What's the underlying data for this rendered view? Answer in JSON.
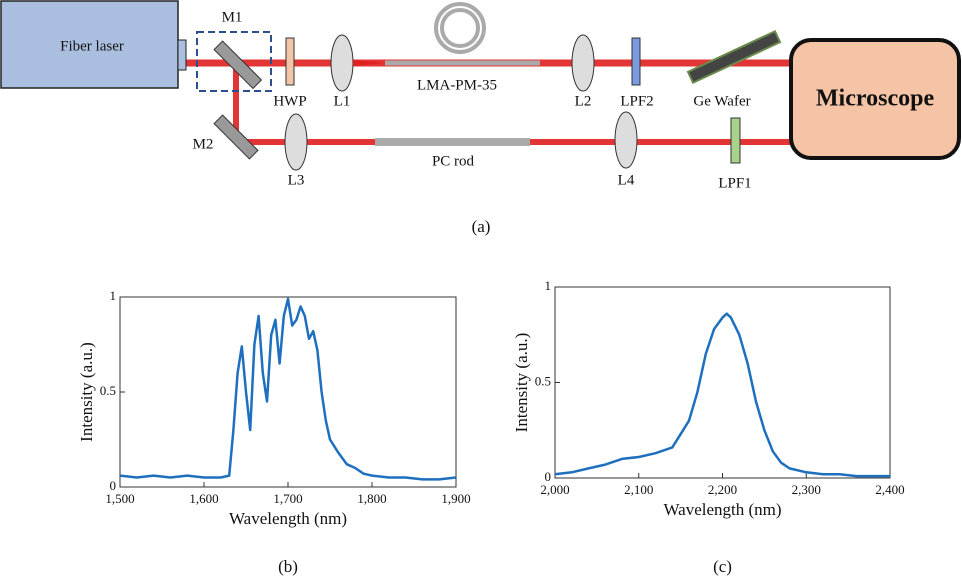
{
  "diagram": {
    "labels": {
      "laser": "Fiber laser",
      "m1": "M1",
      "hwp": "HWP",
      "l1": "L1",
      "fiber": "LMA-PM-35",
      "l2": "L2",
      "lpf2": "LPF2",
      "wafer": "Ge Wafer",
      "microscope": "Microscope",
      "m2": "M2",
      "l3": "L3",
      "rod": "PC rod",
      "l4": "L4",
      "lpf1": "LPF1"
    },
    "caption": "(a)"
  },
  "chart_data": [
    {
      "type": "line",
      "caption": "(b)",
      "xlabel": "Wavelength (nm)",
      "ylabel": "Intensity (a.u.)",
      "x": [
        1500,
        1520,
        1540,
        1560,
        1580,
        1600,
        1620,
        1630,
        1635,
        1640,
        1645,
        1650,
        1655,
        1660,
        1665,
        1670,
        1675,
        1680,
        1685,
        1690,
        1695,
        1700,
        1705,
        1710,
        1715,
        1720,
        1725,
        1730,
        1735,
        1740,
        1745,
        1750,
        1760,
        1770,
        1780,
        1790,
        1800,
        1820,
        1840,
        1860,
        1880,
        1900
      ],
      "series": [
        {
          "color": "#1f6fbf",
          "values": [
            0.06,
            0.05,
            0.06,
            0.05,
            0.06,
            0.05,
            0.05,
            0.06,
            0.3,
            0.6,
            0.74,
            0.5,
            0.3,
            0.75,
            0.9,
            0.6,
            0.45,
            0.8,
            0.88,
            0.65,
            0.9,
            0.99,
            0.85,
            0.88,
            0.95,
            0.9,
            0.78,
            0.82,
            0.72,
            0.5,
            0.35,
            0.25,
            0.18,
            0.12,
            0.1,
            0.07,
            0.06,
            0.05,
            0.05,
            0.04,
            0.04,
            0.05
          ]
        }
      ],
      "xlim": [
        1500,
        1900
      ],
      "ylim": [
        0,
        1
      ],
      "xticks": [
        {
          "value": 1500,
          "label": "1,500"
        },
        {
          "value": 1600,
          "label": "1,600"
        },
        {
          "value": 1700,
          "label": "1,700"
        },
        {
          "value": 1800,
          "label": "1,800"
        },
        {
          "value": 1900,
          "label": "1,900"
        }
      ],
      "yticks": [
        0,
        0.5,
        1
      ]
    },
    {
      "type": "line",
      "caption": "(c)",
      "xlabel": "Wavelength (nm)",
      "ylabel": "Intensity (a.u.)",
      "x": [
        2000,
        2020,
        2040,
        2060,
        2080,
        2100,
        2120,
        2140,
        2160,
        2170,
        2180,
        2190,
        2200,
        2205,
        2210,
        2220,
        2230,
        2240,
        2250,
        2260,
        2270,
        2280,
        2300,
        2320,
        2340,
        2360,
        2380,
        2400
      ],
      "series": [
        {
          "color": "#1f6fbf",
          "values": [
            0.02,
            0.03,
            0.05,
            0.07,
            0.1,
            0.11,
            0.13,
            0.16,
            0.3,
            0.45,
            0.65,
            0.78,
            0.84,
            0.86,
            0.84,
            0.75,
            0.6,
            0.4,
            0.25,
            0.14,
            0.08,
            0.05,
            0.03,
            0.02,
            0.02,
            0.01,
            0.01,
            0.01
          ]
        }
      ],
      "xlim": [
        2000,
        2400
      ],
      "ylim": [
        0,
        1
      ],
      "xticks": [
        {
          "value": 2000,
          "label": "2,000"
        },
        {
          "value": 2100,
          "label": "2,100"
        },
        {
          "value": 2200,
          "label": "2,200"
        },
        {
          "value": 2300,
          "label": "2,300"
        },
        {
          "value": 2400,
          "label": "2,400"
        }
      ],
      "yticks": [
        0,
        0.5,
        1
      ]
    }
  ]
}
